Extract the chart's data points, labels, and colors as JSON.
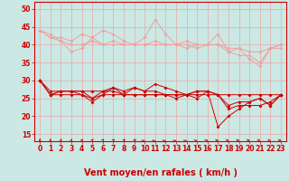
{
  "title": "",
  "xlabel": "Vent moyen/en rafales ( km/h )",
  "ylabel": "",
  "background_color": "#cce8e4",
  "grid_color": "#e8a8a8",
  "xlim": [
    -0.5,
    23.5
  ],
  "ylim": [
    13,
    52
  ],
  "yticks": [
    15,
    20,
    25,
    30,
    35,
    40,
    45,
    50
  ],
  "xticks": [
    0,
    1,
    2,
    3,
    4,
    5,
    6,
    7,
    8,
    9,
    10,
    11,
    12,
    13,
    14,
    15,
    16,
    17,
    18,
    19,
    20,
    21,
    22,
    23
  ],
  "light_pink_lines": [
    [
      44,
      42,
      42,
      41,
      43,
      42,
      44,
      43,
      41,
      40,
      42,
      47,
      43,
      40,
      41,
      40,
      40,
      43,
      38,
      39,
      36,
      34,
      39,
      40
    ],
    [
      44,
      42,
      41,
      40,
      40,
      41,
      40,
      41,
      40,
      40,
      40,
      40,
      40,
      40,
      39,
      40,
      40,
      40,
      39,
      39,
      38,
      38,
      39,
      39
    ],
    [
      44,
      43,
      41,
      38,
      39,
      42,
      40,
      40,
      40,
      40,
      40,
      41,
      40,
      40,
      40,
      39,
      40,
      40,
      38,
      37,
      37,
      35,
      39,
      40
    ]
  ],
  "dark_red_lines": [
    [
      30,
      27,
      27,
      27,
      27,
      27,
      27,
      28,
      27,
      28,
      27,
      29,
      28,
      27,
      26,
      27,
      27,
      17,
      20,
      22,
      24,
      25,
      23,
      26
    ],
    [
      30,
      26,
      26,
      26,
      26,
      25,
      26,
      26,
      26,
      26,
      26,
      26,
      26,
      26,
      26,
      26,
      26,
      26,
      26,
      26,
      26,
      26,
      26,
      26
    ],
    [
      30,
      26,
      27,
      27,
      26,
      24,
      26,
      28,
      26,
      28,
      27,
      27,
      26,
      26,
      26,
      27,
      27,
      26,
      22,
      23,
      23,
      23,
      24,
      26
    ],
    [
      30,
      26,
      27,
      27,
      27,
      25,
      27,
      27,
      26,
      26,
      26,
      26,
      26,
      25,
      26,
      25,
      27,
      26,
      23,
      24,
      24,
      25,
      23,
      26
    ]
  ],
  "light_pink_color": "#f0a0a0",
  "dark_red_color": "#cc0000",
  "marker_size": 2.0,
  "xlabel_fontsize": 7,
  "tick_fontsize": 5.5,
  "arrow_angles_deg": [
    0,
    5,
    10,
    15,
    20,
    25,
    30,
    35,
    40,
    45,
    50,
    50,
    50,
    50,
    50,
    55,
    60,
    65,
    65,
    65,
    65,
    65,
    65,
    65
  ]
}
